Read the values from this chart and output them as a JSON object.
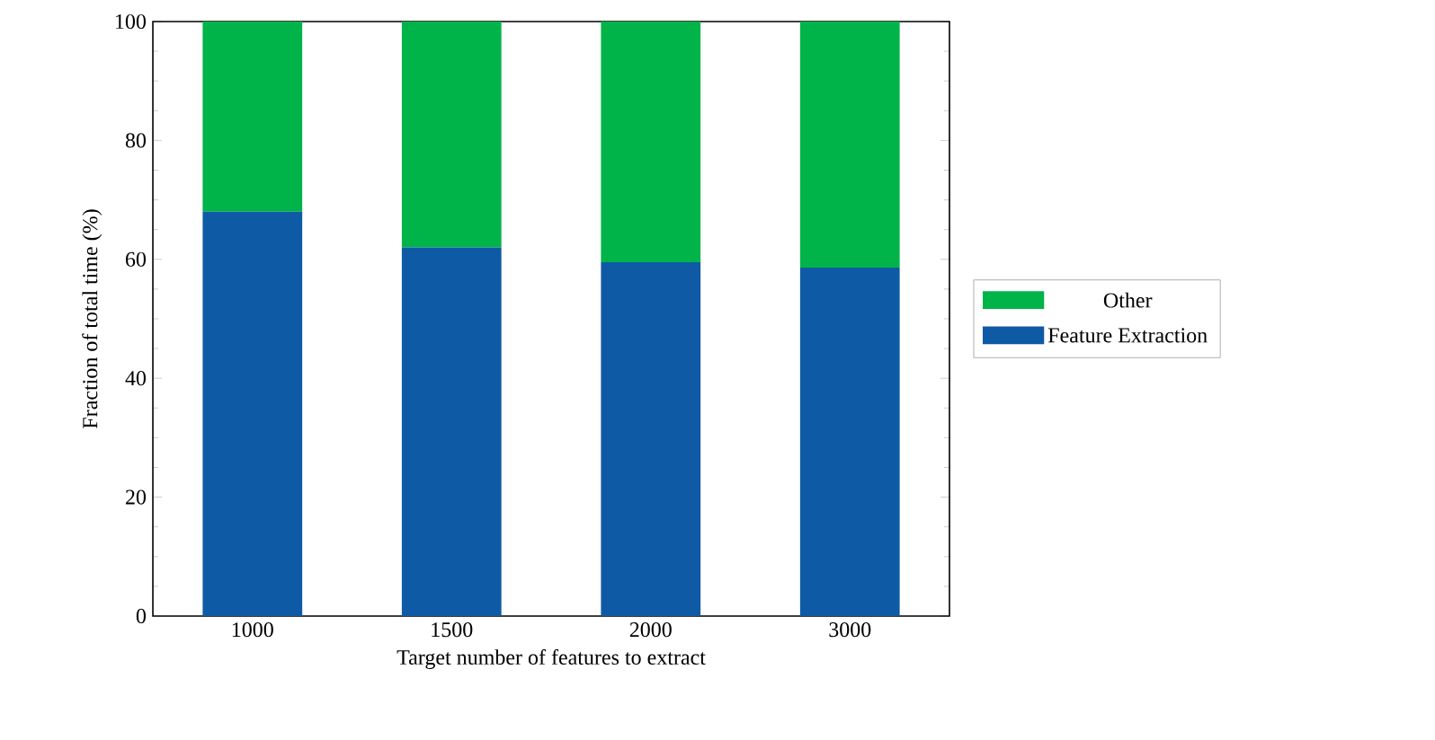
{
  "chart_data": {
    "type": "bar",
    "stacked": true,
    "xlabel": "Target number of features to extract",
    "ylabel": "Fraction of total time (%)",
    "categories": [
      "1000",
      "1500",
      "2000",
      "3000"
    ],
    "series": [
      {
        "name": "Feature Extraction",
        "color": "#0f5aa5",
        "values": [
          68,
          62,
          59.5,
          58.6
        ]
      },
      {
        "name": "Other",
        "color": "#00b44a",
        "values": [
          32,
          38,
          40.5,
          41.4
        ]
      }
    ],
    "ylim": [
      0,
      100
    ],
    "yticks": [
      0,
      20,
      40,
      60,
      80,
      100
    ],
    "legend": "right"
  }
}
